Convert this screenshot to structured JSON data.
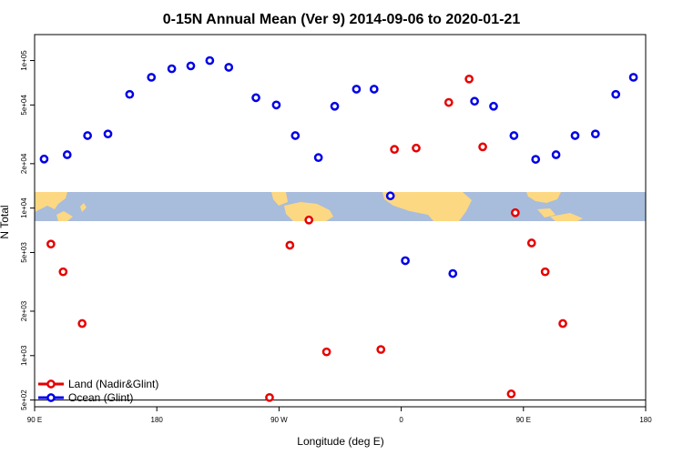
{
  "chart_data": {
    "type": "scatter",
    "title": "0-15N Annual Mean (Ver 9)   2014-09-06 to 2020-01-21",
    "xlabel": "Longitude (deg E)",
    "ylabel": "N Total",
    "xlim": [
      90,
      540
    ],
    "ylim_log": [
      450,
      150000
    ],
    "y_scale": "log",
    "x_ticks": [
      {
        "value": 90,
        "label": "90 E"
      },
      {
        "value": 180,
        "label": "180"
      },
      {
        "value": 270,
        "label": "90 W"
      },
      {
        "value": 360,
        "label": "0"
      },
      {
        "value": 450,
        "label": "90 E"
      },
      {
        "value": 540,
        "label": "180"
      }
    ],
    "y_ticks": [
      {
        "value": 500,
        "label": "5e+02"
      },
      {
        "value": 1000,
        "label": "1e+03"
      },
      {
        "value": 2000,
        "label": "2e+03"
      },
      {
        "value": 5000,
        "label": "5e+03"
      },
      {
        "value": 10000,
        "label": "1e+04"
      },
      {
        "value": 20000,
        "label": "2e+04"
      },
      {
        "value": 50000,
        "label": "5e+04"
      },
      {
        "value": 100000,
        "label": "1e+05"
      }
    ],
    "legend_position": "bottom-left",
    "map_band": true,
    "series": [
      {
        "name": "Land (Nadir&Glint)",
        "color": "#e60000",
        "points": [
          [
            102,
            5700
          ],
          [
            111,
            3700
          ],
          [
            125,
            1650
          ],
          [
            263,
            520
          ],
          [
            278,
            5600
          ],
          [
            292,
            8300
          ],
          [
            305,
            1060
          ],
          [
            345,
            1100
          ],
          [
            355,
            25000
          ],
          [
            371,
            25500
          ],
          [
            395,
            52000
          ],
          [
            410,
            75000
          ],
          [
            420,
            26000
          ],
          [
            441,
            550
          ],
          [
            444,
            9300
          ],
          [
            456,
            5800
          ],
          [
            466,
            3700
          ],
          [
            479,
            1650
          ]
        ]
      },
      {
        "name": "Ocean (Glint)",
        "color": "#0000e6",
        "points": [
          [
            97,
            21500
          ],
          [
            114,
            23000
          ],
          [
            129,
            31000
          ],
          [
            144,
            31800
          ],
          [
            160,
            59000
          ],
          [
            176,
            77000
          ],
          [
            191,
            88000
          ],
          [
            205,
            92000
          ],
          [
            219,
            100000
          ],
          [
            233,
            90000
          ],
          [
            253,
            56000
          ],
          [
            268,
            50000
          ],
          [
            282,
            31000
          ],
          [
            299,
            22000
          ],
          [
            311,
            49000
          ],
          [
            327,
            64000
          ],
          [
            340,
            64000
          ],
          [
            352,
            12100
          ],
          [
            363,
            4400
          ],
          [
            398,
            3600
          ],
          [
            414,
            53000
          ],
          [
            428,
            49000
          ],
          [
            443,
            31000
          ],
          [
            459,
            21400
          ],
          [
            474,
            23000
          ],
          [
            488,
            31000
          ],
          [
            503,
            31800
          ],
          [
            518,
            59000
          ],
          [
            531,
            77000
          ]
        ]
      }
    ]
  }
}
